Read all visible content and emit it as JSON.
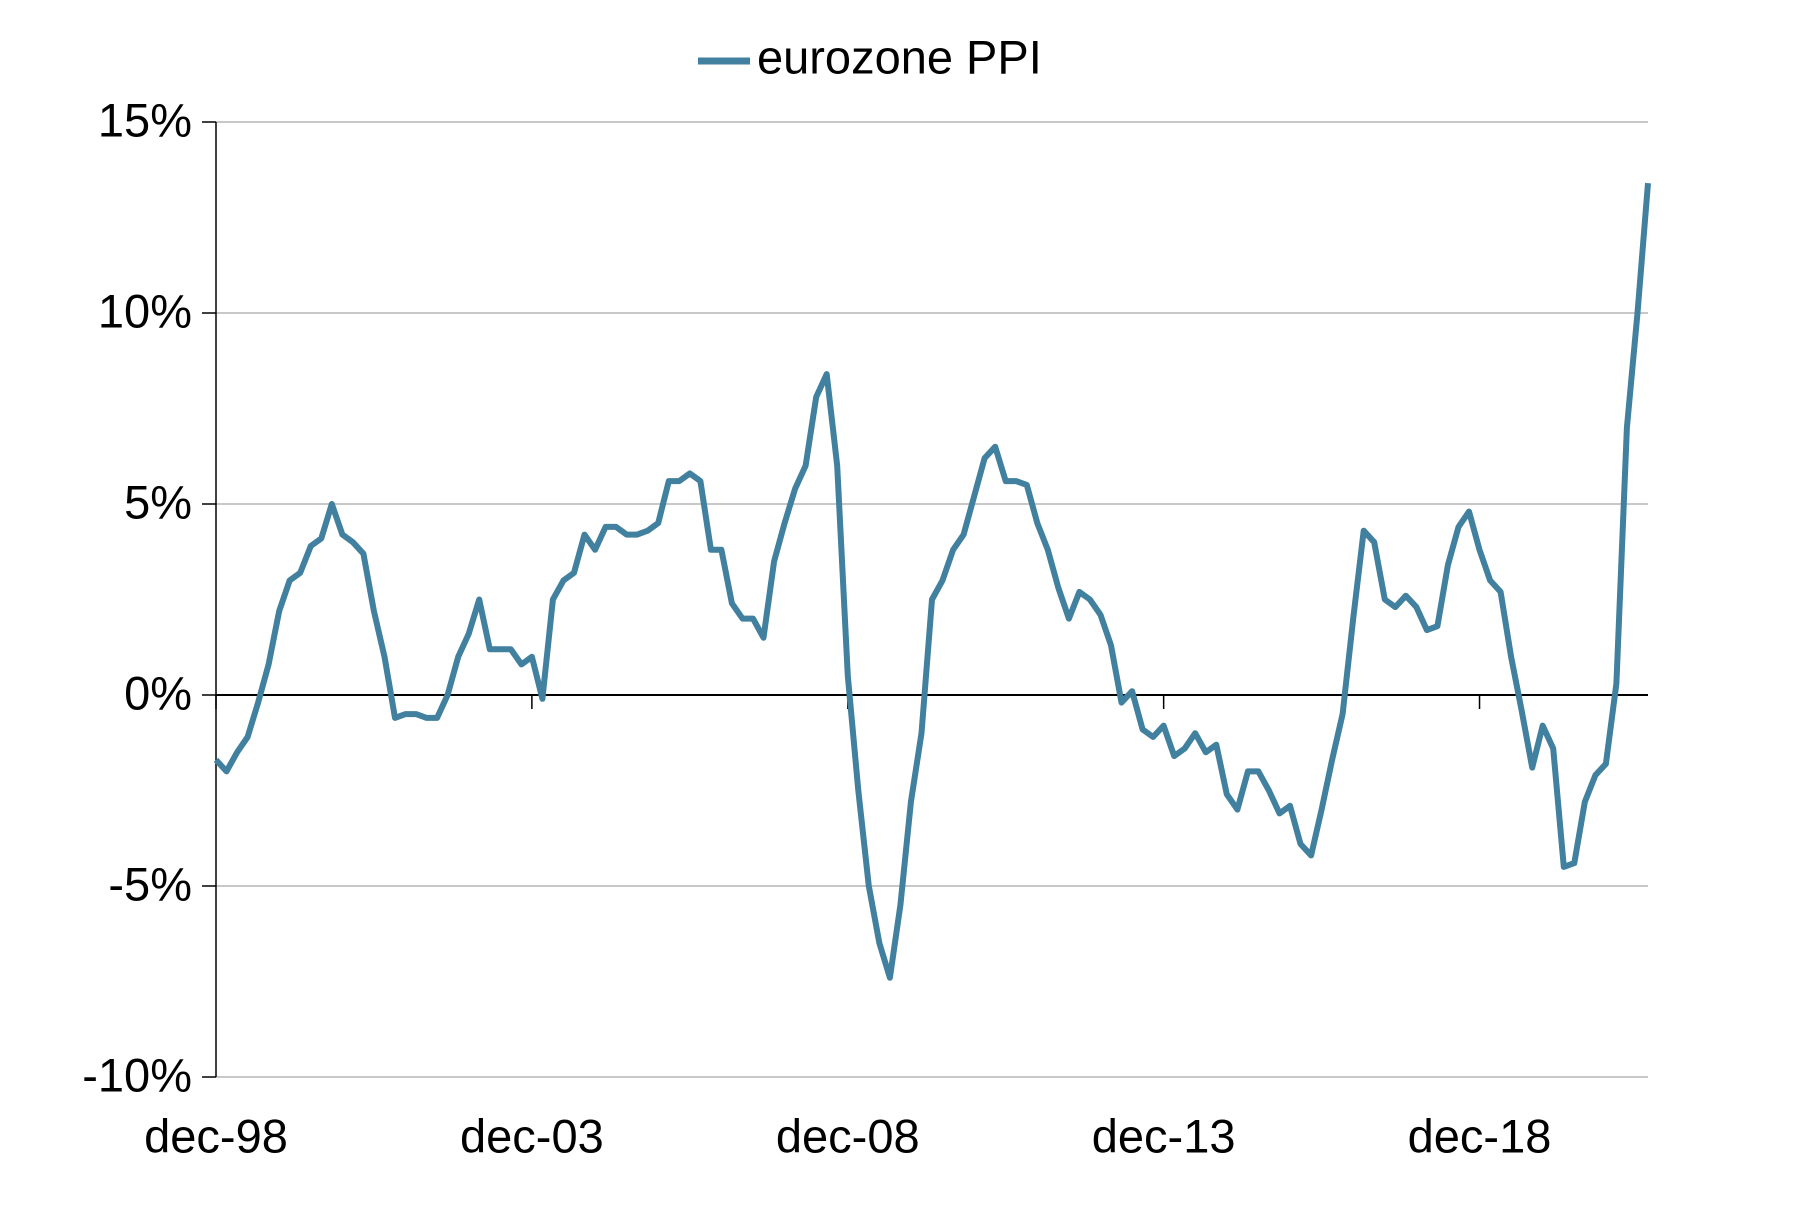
{
  "chart_data": {
    "type": "line",
    "categories": [
      "dec-98",
      null,
      null,
      null,
      null,
      null,
      null,
      null,
      null,
      null,
      null,
      null,
      null,
      null,
      null,
      null,
      null,
      null,
      null,
      null,
      null,
      null,
      null,
      null,
      null,
      null,
      null,
      null,
      null,
      null,
      "dec-03",
      null,
      null,
      null,
      null,
      null,
      null,
      null,
      null,
      null,
      null,
      null,
      null,
      null,
      null,
      null,
      null,
      null,
      null,
      null,
      null,
      null,
      null,
      null,
      null,
      null,
      null,
      null,
      null,
      null,
      "dec-08",
      null,
      null,
      null,
      null,
      null,
      null,
      null,
      null,
      null,
      null,
      null,
      null,
      null,
      null,
      null,
      null,
      null,
      null,
      null,
      null,
      null,
      null,
      null,
      null,
      null,
      null,
      null,
      null,
      null,
      "dec-13",
      null,
      null,
      null,
      null,
      null,
      null,
      null,
      null,
      null,
      null,
      null,
      null,
      null,
      null,
      null,
      null,
      null,
      null,
      null,
      null,
      null,
      null,
      null,
      null,
      null,
      null,
      null,
      null,
      null,
      "dec-18",
      null,
      null,
      null,
      null,
      null,
      null,
      null,
      null,
      null,
      null,
      null,
      null,
      null,
      null,
      null,
      null
    ],
    "series": [
      {
        "name": "eurozone PPI",
        "color": "#41809f",
        "values": [
          -1.7,
          -2.0,
          -1.5,
          -1.1,
          -0.2,
          0.8,
          2.2,
          3.0,
          3.2,
          3.9,
          4.1,
          5.0,
          4.2,
          4.0,
          3.7,
          2.2,
          1.0,
          -0.6,
          -0.5,
          -0.5,
          -0.6,
          -0.6,
          0.0,
          1.0,
          1.6,
          2.5,
          1.2,
          1.2,
          1.2,
          0.8,
          1.0,
          -0.1,
          2.5,
          3.0,
          3.2,
          4.2,
          3.8,
          4.4,
          4.4,
          4.2,
          4.2,
          4.3,
          4.5,
          5.6,
          5.6,
          5.8,
          5.6,
          3.8,
          3.8,
          2.4,
          2.0,
          2.0,
          1.5,
          3.5,
          4.5,
          5.4,
          6.0,
          7.8,
          8.4,
          6.0,
          0.5,
          -2.5,
          -5.0,
          -6.5,
          -7.4,
          -5.5,
          -2.8,
          -1.0,
          2.5,
          3.0,
          3.8,
          4.2,
          5.2,
          6.2,
          6.5,
          5.6,
          5.6,
          5.5,
          4.5,
          3.8,
          2.8,
          2.0,
          2.7,
          2.5,
          2.1,
          1.3,
          -0.2,
          0.1,
          -0.9,
          -1.1,
          -0.8,
          -1.6,
          -1.4,
          -1.0,
          -1.5,
          -1.3,
          -2.6,
          -3.0,
          -2.0,
          -2.0,
          -2.5,
          -3.1,
          -2.9,
          -3.9,
          -4.2,
          -3.0,
          -1.7,
          -0.5,
          2.0,
          4.3,
          4.0,
          2.5,
          2.3,
          2.6,
          2.3,
          1.7,
          1.8,
          3.4,
          4.4,
          4.8,
          3.8,
          3.0,
          2.7,
          1.0,
          -0.4,
          -1.9,
          -0.8,
          -1.4,
          -4.5,
          -4.4,
          -2.8,
          -2.1,
          -1.8,
          0.3,
          7.0,
          10.0,
          13.4
        ]
      }
    ],
    "ylim": [
      -10,
      15
    ],
    "yticks": [
      {
        "value": -10,
        "label": "-10%"
      },
      {
        "value": -5,
        "label": "-5%"
      },
      {
        "value": 0,
        "label": "0%"
      },
      {
        "value": 5,
        "label": "5%"
      },
      {
        "value": 10,
        "label": "10%"
      },
      {
        "value": 15,
        "label": "15%"
      }
    ],
    "grid": true,
    "legend": "top"
  }
}
